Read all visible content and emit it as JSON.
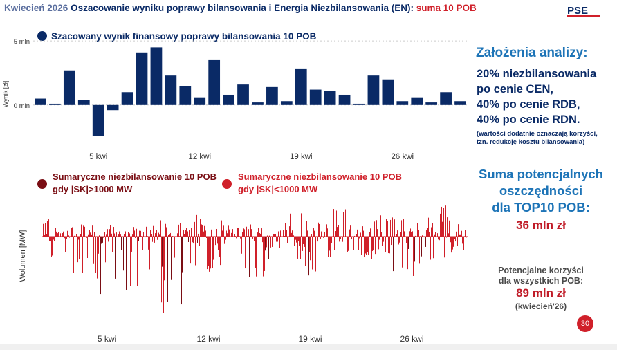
{
  "header": {
    "date": "Kwiecień 2026",
    "title": "Oszacowanie wyniku poprawy bilansowania i Energia Niezbilansowania (EN):",
    "highlight": "suma 10 POB"
  },
  "logo_text": "PSE",
  "colors": {
    "navy": "#0a2a66",
    "dark_red": "#7a0e14",
    "red": "#d0202a",
    "accent_blue": "#1d74b7"
  },
  "chart_data": [
    {
      "type": "bar",
      "legend": "Szacowany wynik finansowy poprawy bilansowania 10 POB",
      "ylabel": "Wynik [zł]",
      "ytick_labels": [
        "5 mln",
        "0 mln"
      ],
      "yticks": [
        5,
        0
      ],
      "ylim": [
        -2.6,
        5.6
      ],
      "x_tick_labels": [
        "5 kwi",
        "12 kwi",
        "19 kwi",
        "26 kwi"
      ],
      "x_tick_days": [
        5,
        12,
        19,
        26
      ],
      "days": [
        1,
        2,
        3,
        4,
        5,
        6,
        7,
        8,
        9,
        10,
        11,
        12,
        13,
        14,
        15,
        16,
        17,
        18,
        19,
        20,
        21,
        22,
        23,
        24,
        25,
        26,
        27,
        28,
        29,
        30
      ],
      "values": [
        0.5,
        0.1,
        2.7,
        0.4,
        -2.4,
        -0.4,
        1.0,
        4.1,
        4.5,
        2.3,
        1.5,
        0.6,
        3.5,
        0.8,
        1.6,
        0.2,
        1.4,
        0.3,
        2.8,
        1.2,
        1.1,
        0.8,
        0.1,
        2.3,
        2.0,
        0.3,
        0.6,
        0.2,
        1.0,
        0.3
      ],
      "color": "#0a2a66"
    },
    {
      "type": "area",
      "ylabel": "Wolumen [MW]",
      "x_tick_labels": [
        "5 kwi",
        "12 kwi",
        "19 kwi",
        "26 kwi"
      ],
      "x_tick_days": [
        5,
        12,
        19,
        26
      ],
      "series": [
        {
          "name": "Sumaryczne niezbilansowanie 10 POB gdy |SK|>1000 MW",
          "line1": "Sumaryczne niezbilansowanie 10 POB",
          "line2": "gdy |SK|>1000 MW",
          "color": "#7a0e14"
        },
        {
          "name": "Sumaryczne niezbilansowanie 10 POB gdy |SK|<1000 MW",
          "line1": "Sumaryczne niezbilansowanie 10 POB",
          "line2": "gdy |SK|<1000 MW",
          "color": "#d0202a"
        }
      ],
      "daily_envelope": {
        "days": [
          1,
          2,
          3,
          4,
          5,
          6,
          7,
          8,
          9,
          10,
          11,
          12,
          13,
          14,
          15,
          16,
          17,
          18,
          19,
          20,
          21,
          22,
          23,
          24,
          25,
          26,
          27,
          28,
          29,
          30
        ],
        "pos_max": [
          0.35,
          0.15,
          0.3,
          0.2,
          0.25,
          0.15,
          0.2,
          0.3,
          0.3,
          0.25,
          0.45,
          0.25,
          0.3,
          0.2,
          0.25,
          0.2,
          0.35,
          0.45,
          0.4,
          0.6,
          0.55,
          0.45,
          0.35,
          0.4,
          0.35,
          0.3,
          0.4,
          0.6,
          0.45,
          0.25
        ],
        "neg_max": [
          0.25,
          0.2,
          0.45,
          0.55,
          0.75,
          0.95,
          0.6,
          0.45,
          0.9,
          0.8,
          0.55,
          0.4,
          0.35,
          0.3,
          0.6,
          0.55,
          0.25,
          0.3,
          0.45,
          0.25,
          0.15,
          0.2,
          0.25,
          0.2,
          0.4,
          0.5,
          0.45,
          0.25,
          0.2,
          0.15
        ],
        "dark_share": [
          0.0,
          0.0,
          0.0,
          0.0,
          0.6,
          0.8,
          0.3,
          0.2,
          0.7,
          0.5,
          0.2,
          0.0,
          0.0,
          0.0,
          0.3,
          0.2,
          0.0,
          0.0,
          0.1,
          0.0,
          0.0,
          0.0,
          0.0,
          0.0,
          0.2,
          0.6,
          0.4,
          0.0,
          0.0,
          0.0
        ]
      }
    }
  ],
  "assumptions": {
    "title": "Założenia analizy:",
    "lines": [
      "20% niezbilansowania",
      "po cenie CEN,",
      "40% po cenie RDB,",
      "40% po cenie RDN."
    ],
    "note1": "(wartości dodatnie oznaczają korzyści,",
    "note2": "tzn. redukcję kosztu bilansowania)"
  },
  "sum": {
    "line1": "Suma potencjalnych",
    "line2": "oszczędności",
    "line3": "dla TOP10 POB:",
    "value": "36 mln zł"
  },
  "all_pob": {
    "line1": "Potencjalne korzyści",
    "line2": "dla wszystkich POB:",
    "value": "89 mln zł",
    "note": "(kwiecień'26)"
  },
  "page_number": "30"
}
